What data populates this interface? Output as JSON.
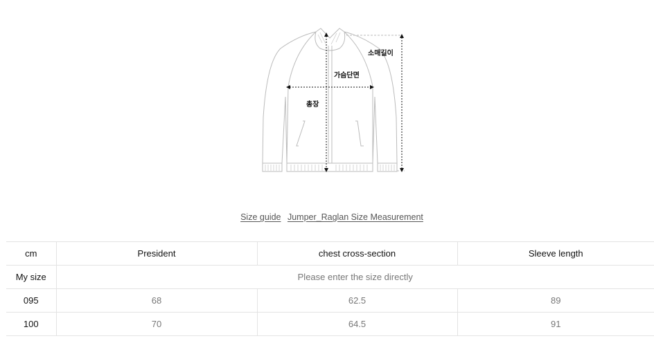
{
  "diagram": {
    "labels": {
      "sleeve_length": "소매길이",
      "chest_cross_section": "가슴단면",
      "total_length": "총장"
    }
  },
  "caption": {
    "size_guide": "Size guide",
    "measurement_title": "Jumper_Raglan Size Measurement"
  },
  "table": {
    "headers": [
      "cm",
      "President",
      "chest cross-section",
      "Sleeve length"
    ],
    "my_size": {
      "label": "My size",
      "placeholder": "Please enter the size directly"
    },
    "rows": [
      {
        "size": "095",
        "values": [
          "68",
          "62.5",
          "89"
        ]
      },
      {
        "size": "100",
        "values": [
          "70",
          "64.5",
          "91"
        ]
      }
    ]
  }
}
